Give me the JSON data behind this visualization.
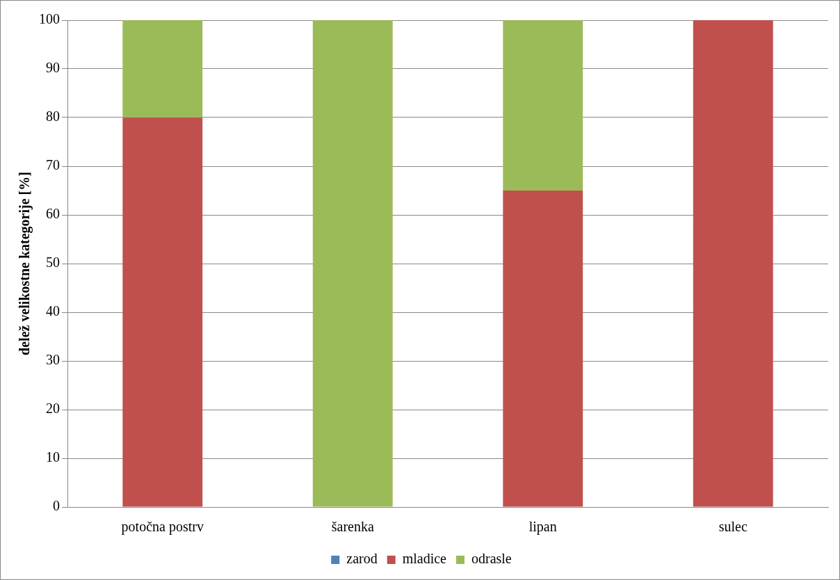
{
  "chart_data": {
    "type": "bar",
    "stacked": true,
    "ylabel": "delež velikostne kategorije [%]",
    "categories": [
      "potočna postrv",
      "šarenka",
      "lipan",
      "sulec"
    ],
    "series": [
      {
        "name": "zarod",
        "color": "#4f81bd",
        "values": [
          0,
          0,
          0,
          0
        ]
      },
      {
        "name": "mladice",
        "color": "#c0504d",
        "values": [
          80,
          0,
          65,
          100
        ]
      },
      {
        "name": "odrasle",
        "color": "#9bbb59",
        "values": [
          20,
          100,
          35,
          0
        ]
      }
    ],
    "ylim": [
      0,
      100
    ],
    "yticks": [
      0,
      10,
      20,
      30,
      40,
      50,
      60,
      70,
      80,
      90,
      100
    ],
    "grid": "y",
    "legend": "bottom"
  }
}
